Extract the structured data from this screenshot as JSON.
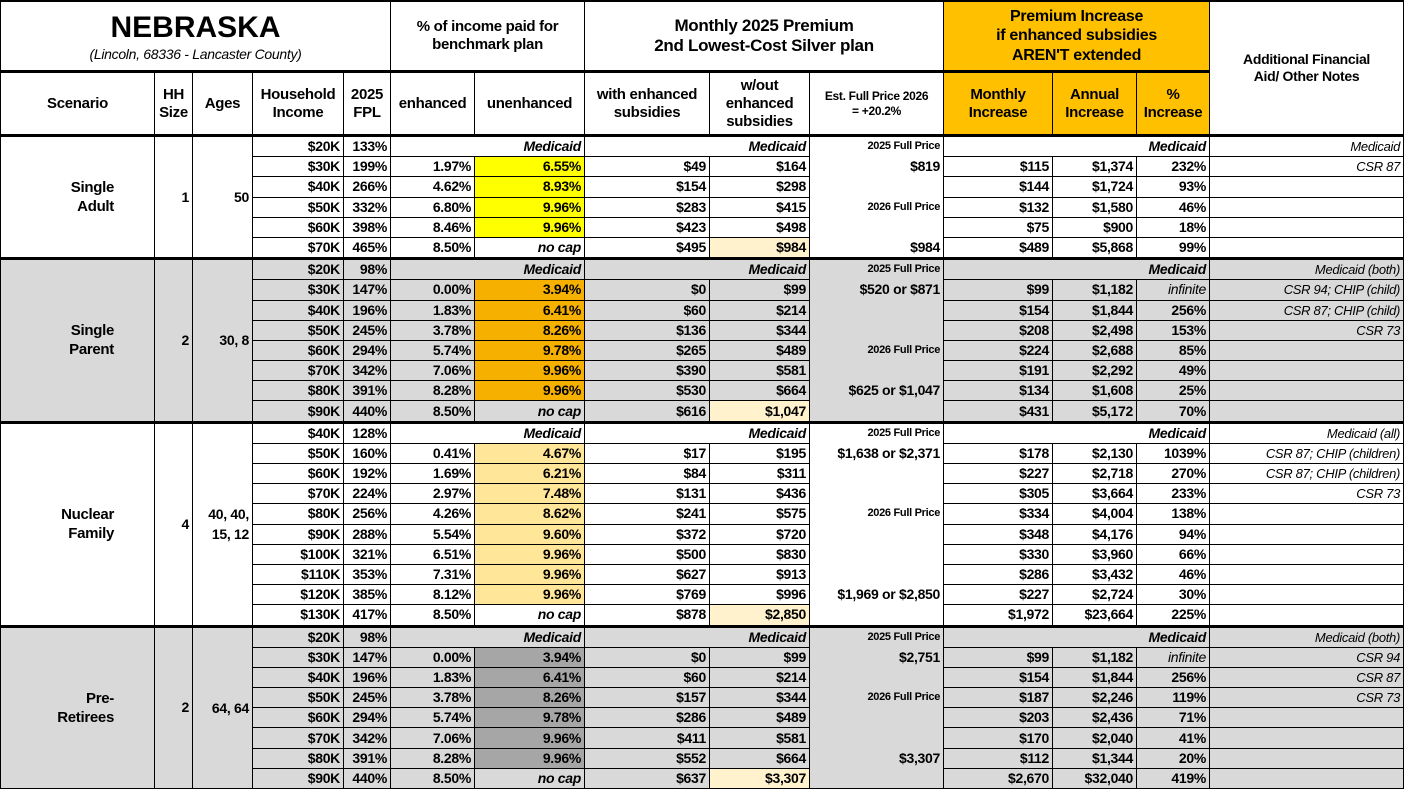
{
  "header": {
    "state": "NEBRASKA",
    "location": "(Lincoln, 68336 - Lancaster County)",
    "pct_income_group": "% of income paid for benchmark plan",
    "premium_group_line1": "Monthly 2025 Premium",
    "premium_group_line2": "2nd Lowest-Cost Silver plan",
    "increase_group_line1": "Premium Increase",
    "increase_group_line2": "if enhanced subsidies",
    "increase_group_line3": "AREN'T extended",
    "notes_header": "Additional Financial Aid/ Other Notes",
    "columns": {
      "scenario": "Scenario",
      "hh_size": "HH Size",
      "ages": "Ages",
      "income": "Household Income",
      "fpl": "2025 FPL",
      "enhanced": "enhanced",
      "unenhanced": "unenhanced",
      "with_enhanced": "with enhanced subsidies",
      "without_enhanced": "w/out enhanced subsidies",
      "est_full_price": "Est. Full Price 2026 = +20.2%",
      "monthly_increase": "Monthly Increase",
      "annual_increase": "Annual Increase",
      "pct_increase": "% Increase"
    }
  },
  "colors": {
    "increase_header": "#ffc000",
    "group_gray": "#d9d9d9",
    "no_cap_highlight": "#fff2cc",
    "single_adult_unenhanced": "#ffff00",
    "single_parent_unenhanced": "#f5b000",
    "nuclear_family_unenhanced": "#ffe699",
    "pre_retirees_unenhanced": "#a6a6a6"
  },
  "groups": [
    {
      "scenario": "Single Adult",
      "hh": "1",
      "ages": "50",
      "shade": false,
      "unenh_color": "#ffff00",
      "rows": [
        {
          "income": "$20K",
          "fpl": "133%",
          "medicaid": "Medicaid",
          "est": "2025 Full Price",
          "est_small": true,
          "note": "Medicaid"
        },
        {
          "income": "$30K",
          "fpl": "199%",
          "enh": "1.97%",
          "unenh": "6.55%",
          "with": "$49",
          "without": "$164",
          "est": "$819",
          "monthly": "$115",
          "annual": "$1,374",
          "pct": "232%",
          "note": "CSR 87"
        },
        {
          "income": "$40K",
          "fpl": "266%",
          "enh": "4.62%",
          "unenh": "8.93%",
          "with": "$154",
          "without": "$298",
          "monthly": "$144",
          "annual": "$1,724",
          "pct": "93%"
        },
        {
          "income": "$50K",
          "fpl": "332%",
          "enh": "6.80%",
          "unenh": "9.96%",
          "with": "$283",
          "without": "$415",
          "est": "2026 Full Price",
          "est_small": true,
          "monthly": "$132",
          "annual": "$1,580",
          "pct": "46%"
        },
        {
          "income": "$60K",
          "fpl": "398%",
          "enh": "8.46%",
          "unenh": "9.96%",
          "with": "$423",
          "without": "$498",
          "monthly": "$75",
          "annual": "$900",
          "pct": "18%"
        },
        {
          "income": "$70K",
          "fpl": "465%",
          "enh": "8.50%",
          "unenh": "no cap",
          "with": "$495",
          "without": "$984",
          "est": "$984",
          "monthly": "$489",
          "annual": "$5,868",
          "pct": "99%"
        }
      ]
    },
    {
      "scenario": "Single Parent",
      "hh": "2",
      "ages": "30, 8",
      "shade": true,
      "unenh_color": "#f5b000",
      "rows": [
        {
          "income": "$20K",
          "fpl": "98%",
          "medicaid": "Medicaid",
          "est": "2025 Full Price",
          "est_small": true,
          "note": "Medicaid (both)"
        },
        {
          "income": "$30K",
          "fpl": "147%",
          "enh": "0.00%",
          "unenh": "3.94%",
          "with": "$0",
          "without": "$99",
          "est": "$520 or $871",
          "monthly": "$99",
          "annual": "$1,182",
          "pct": "infinite",
          "note": "CSR 94; CHIP (child)"
        },
        {
          "income": "$40K",
          "fpl": "196%",
          "enh": "1.83%",
          "unenh": "6.41%",
          "with": "$60",
          "without": "$214",
          "monthly": "$154",
          "annual": "$1,844",
          "pct": "256%",
          "note": "CSR 87; CHIP (child)"
        },
        {
          "income": "$50K",
          "fpl": "245%",
          "enh": "3.78%",
          "unenh": "8.26%",
          "with": "$136",
          "without": "$344",
          "monthly": "$208",
          "annual": "$2,498",
          "pct": "153%",
          "note": "CSR 73"
        },
        {
          "income": "$60K",
          "fpl": "294%",
          "enh": "5.74%",
          "unenh": "9.78%",
          "with": "$265",
          "without": "$489",
          "est": "2026 Full Price",
          "est_small": true,
          "monthly": "$224",
          "annual": "$2,688",
          "pct": "85%"
        },
        {
          "income": "$70K",
          "fpl": "342%",
          "enh": "7.06%",
          "unenh": "9.96%",
          "with": "$390",
          "without": "$581",
          "monthly": "$191",
          "annual": "$2,292",
          "pct": "49%"
        },
        {
          "income": "$80K",
          "fpl": "391%",
          "enh": "8.28%",
          "unenh": "9.96%",
          "with": "$530",
          "without": "$664",
          "est": "$625 or $1,047",
          "monthly": "$134",
          "annual": "$1,608",
          "pct": "25%"
        },
        {
          "income": "$90K",
          "fpl": "440%",
          "enh": "8.50%",
          "unenh": "no cap",
          "with": "$616",
          "without": "$1,047",
          "monthly": "$431",
          "annual": "$5,172",
          "pct": "70%"
        }
      ]
    },
    {
      "scenario": "Nuclear Family",
      "hh": "4",
      "ages": "40, 40, 15, 12",
      "shade": false,
      "unenh_color": "#ffe699",
      "rows": [
        {
          "income": "$40K",
          "fpl": "128%",
          "medicaid": "Medicaid",
          "est": "2025 Full Price",
          "est_small": true,
          "note": "Medicaid (all)"
        },
        {
          "income": "$50K",
          "fpl": "160%",
          "enh": "0.41%",
          "unenh": "4.67%",
          "with": "$17",
          "without": "$195",
          "est": "$1,638 or $2,371",
          "monthly": "$178",
          "annual": "$2,130",
          "pct": "1039%",
          "note": "CSR 87; CHIP (children)"
        },
        {
          "income": "$60K",
          "fpl": "192%",
          "enh": "1.69%",
          "unenh": "6.21%",
          "with": "$84",
          "without": "$311",
          "monthly": "$227",
          "annual": "$2,718",
          "pct": "270%",
          "note": "CSR 87; CHIP (children)"
        },
        {
          "income": "$70K",
          "fpl": "224%",
          "enh": "2.97%",
          "unenh": "7.48%",
          "with": "$131",
          "without": "$436",
          "monthly": "$305",
          "annual": "$3,664",
          "pct": "233%",
          "note": "CSR 73"
        },
        {
          "income": "$80K",
          "fpl": "256%",
          "enh": "4.26%",
          "unenh": "8.62%",
          "with": "$241",
          "without": "$575",
          "est": "2026 Full Price",
          "est_small": true,
          "monthly": "$334",
          "annual": "$4,004",
          "pct": "138%"
        },
        {
          "income": "$90K",
          "fpl": "288%",
          "enh": "5.54%",
          "unenh": "9.60%",
          "with": "$372",
          "without": "$720",
          "monthly": "$348",
          "annual": "$4,176",
          "pct": "94%"
        },
        {
          "income": "$100K",
          "fpl": "321%",
          "enh": "6.51%",
          "unenh": "9.96%",
          "with": "$500",
          "without": "$830",
          "monthly": "$330",
          "annual": "$3,960",
          "pct": "66%"
        },
        {
          "income": "$110K",
          "fpl": "353%",
          "enh": "7.31%",
          "unenh": "9.96%",
          "with": "$627",
          "without": "$913",
          "monthly": "$286",
          "annual": "$3,432",
          "pct": "46%"
        },
        {
          "income": "$120K",
          "fpl": "385%",
          "enh": "8.12%",
          "unenh": "9.96%",
          "with": "$769",
          "without": "$996",
          "est": "$1,969 or $2,850",
          "monthly": "$227",
          "annual": "$2,724",
          "pct": "30%"
        },
        {
          "income": "$130K",
          "fpl": "417%",
          "enh": "8.50%",
          "unenh": "no cap",
          "with": "$878",
          "without": "$2,850",
          "monthly": "$1,972",
          "annual": "$23,664",
          "pct": "225%"
        }
      ]
    },
    {
      "scenario": "Pre-Retirees",
      "hh": "2",
      "ages": "64, 64",
      "shade": true,
      "unenh_color": "#a6a6a6",
      "rows": [
        {
          "income": "$20K",
          "fpl": "98%",
          "medicaid": "Medicaid",
          "est": "2025 Full Price",
          "est_small": true,
          "note": "Medicaid (both)"
        },
        {
          "income": "$30K",
          "fpl": "147%",
          "enh": "0.00%",
          "unenh": "3.94%",
          "with": "$0",
          "without": "$99",
          "est": "$2,751",
          "monthly": "$99",
          "annual": "$1,182",
          "pct": "infinite",
          "note": "CSR 94"
        },
        {
          "income": "$40K",
          "fpl": "196%",
          "enh": "1.83%",
          "unenh": "6.41%",
          "with": "$60",
          "without": "$214",
          "monthly": "$154",
          "annual": "$1,844",
          "pct": "256%",
          "note": "CSR 87"
        },
        {
          "income": "$50K",
          "fpl": "245%",
          "enh": "3.78%",
          "unenh": "8.26%",
          "with": "$157",
          "without": "$344",
          "est": "2026 Full Price",
          "est_small": true,
          "monthly": "$187",
          "annual": "$2,246",
          "pct": "119%",
          "note": "CSR 73"
        },
        {
          "income": "$60K",
          "fpl": "294%",
          "enh": "5.74%",
          "unenh": "9.78%",
          "with": "$286",
          "without": "$489",
          "monthly": "$203",
          "annual": "$2,436",
          "pct": "71%"
        },
        {
          "income": "$70K",
          "fpl": "342%",
          "enh": "7.06%",
          "unenh": "9.96%",
          "with": "$411",
          "without": "$581",
          "monthly": "$170",
          "annual": "$2,040",
          "pct": "41%"
        },
        {
          "income": "$80K",
          "fpl": "391%",
          "enh": "8.28%",
          "unenh": "9.96%",
          "with": "$552",
          "without": "$664",
          "est": "$3,307",
          "monthly": "$112",
          "annual": "$1,344",
          "pct": "20%"
        },
        {
          "income": "$90K",
          "fpl": "440%",
          "enh": "8.50%",
          "unenh": "no cap",
          "with": "$637",
          "without": "$3,307",
          "monthly": "$2,670",
          "annual": "$32,040",
          "pct": "419%"
        }
      ]
    }
  ]
}
